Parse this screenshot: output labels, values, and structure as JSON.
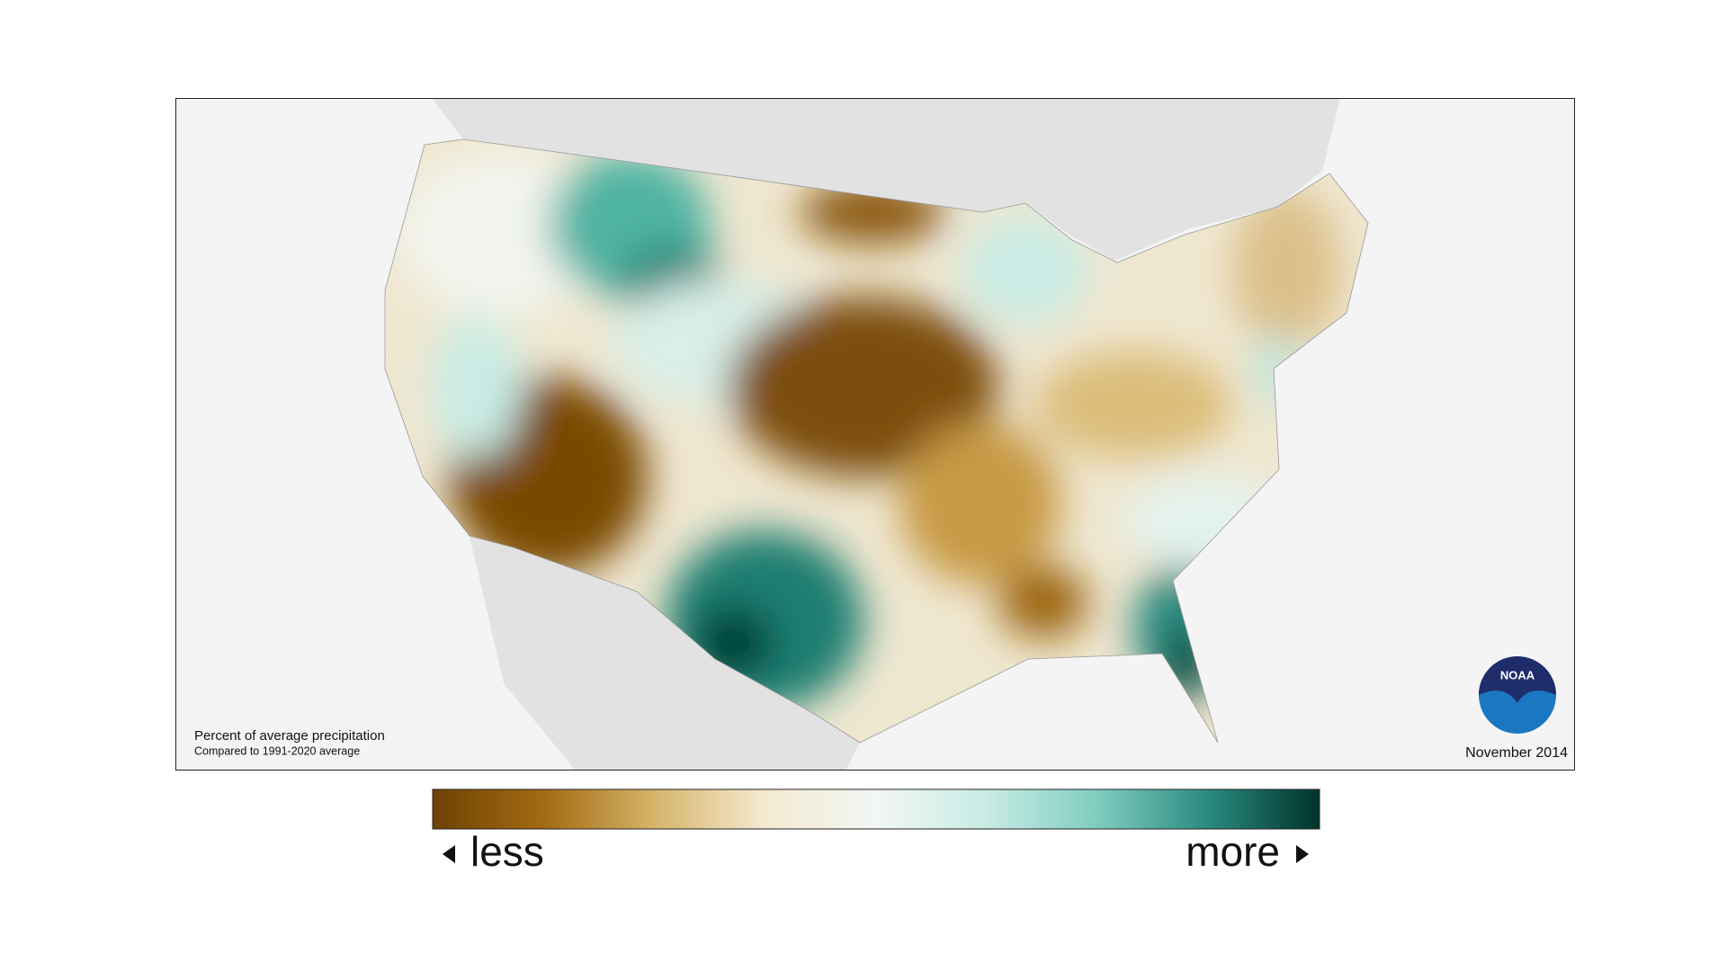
{
  "map": {
    "caption_title": "Percent of average precipitation",
    "caption_subtitle": "Compared to 1991-2020 average",
    "date": "November 2014",
    "logo_text": "NOAA"
  },
  "colorbar": {
    "colors": [
      "#6e4204",
      "#a36a12",
      "#d6b46a",
      "#f4ead0",
      "#f2f6f5",
      "#c8ebe4",
      "#7fcdbf",
      "#2a8a7f",
      "#00332b"
    ],
    "low_label": "less",
    "high_label": "more"
  }
}
